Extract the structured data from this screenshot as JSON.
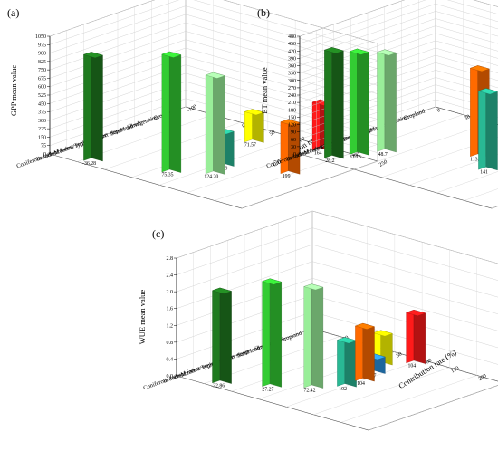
{
  "chart_data": [
    {
      "type": "bar",
      "panel_label": "(a)",
      "ylabel": "GPP mean value",
      "xlabel": "Contribution rate (%)",
      "y_ticks": [
        "0",
        "75",
        "150",
        "225",
        "300",
        "375",
        "450",
        "525",
        "600",
        "675",
        "750",
        "825",
        "900",
        "975",
        "1050"
      ],
      "x_ticks": [
        "-100",
        "-50",
        "0",
        "50",
        "100",
        "150",
        "200",
        "250"
      ],
      "categories": [
        "Coniferous forest",
        "Broadleaf forest",
        "Meadow steppe",
        "Typical steppe",
        "Desert steppe",
        "Shrub",
        "Sand land vegetation",
        "Cropland"
      ],
      "values": [
        945,
        1050,
        880,
        310,
        460,
        52,
        270,
        430
      ],
      "contribution_rate": [
        -36.28,
        75.35,
        124.2,
        109.89,
        199.0,
        31.51,
        71.57,
        164.0
      ],
      "bar_labels": [
        "-36.28",
        "75.35",
        "124.20",
        "109.89",
        "199",
        "31.51",
        "71.57",
        "164"
      ],
      "colors": [
        "#1f7a1f",
        "#33cc33",
        "#99ee99",
        "#29b894",
        "#ff6a00",
        "#2a92e0",
        "#ffff00",
        "#ff1a1a"
      ],
      "ylim": [
        0,
        1050
      ],
      "xlim": [
        -100,
        250
      ],
      "grid": true
    },
    {
      "type": "bar",
      "panel_label": "(b)",
      "ylabel": "ET mean value",
      "xlabel": "Contribution rate (%)",
      "y_ticks": [
        "0",
        "30",
        "60",
        "90",
        "120",
        "150",
        "180",
        "210",
        "240",
        "270",
        "300",
        "330",
        "360",
        "390",
        "420",
        "450",
        "480"
      ],
      "x_ticks": [
        "0",
        "30",
        "60",
        "90",
        "120",
        "150",
        "180",
        "210"
      ],
      "categories": [
        "Coniferous forest",
        "Broadleaf forest",
        "Meadow steppe",
        "Typical steppe",
        "Desert steppe",
        "Shrub",
        "Sand land vegetation",
        "Cropland"
      ],
      "values": [
        440,
        420,
        405,
        320,
        360,
        218,
        328,
        330
      ],
      "contribution_rate": [
        28.2,
        37.15,
        48.7,
        141,
        113.4,
        129,
        107.94,
        111.47
      ],
      "bar_labels": [
        "28.2",
        "37.15",
        "48.7",
        "141",
        "113.4",
        "129",
        "107.94",
        "111.47"
      ],
      "colors": [
        "#1f7a1f",
        "#33cc33",
        "#99ee99",
        "#29b894",
        "#ff6a00",
        "#2a92e0",
        "#ffff00",
        "#ff1a1a"
      ],
      "ylim": [
        0,
        480
      ],
      "xlim": [
        0,
        210
      ],
      "grid": true
    },
    {
      "type": "bar",
      "panel_label": "(c)",
      "ylabel": "WUE mean value",
      "xlabel": "Contribution rate (%)",
      "y_ticks": [
        "0.0",
        "0.4",
        "0.8",
        "1.2",
        "1.6",
        "2.0",
        "2.4",
        "2.8"
      ],
      "x_ticks": [
        "-100",
        "-50",
        "0",
        "50",
        "100",
        "150",
        "200",
        "250"
      ],
      "categories": [
        "Coniferous forest",
        "Broadleaf forest",
        "Meadow steppe",
        "Typical steppe",
        "Desert steppe",
        "Shrub",
        "Sand land vegetation",
        "Cropland"
      ],
      "values": [
        2.2,
        2.5,
        2.4,
        1.1,
        1.3,
        0.4,
        0.75,
        1.2
      ],
      "contribution_rate": [
        -32.86,
        27.27,
        72.42,
        102.0,
        104.0,
        92.7,
        74.95,
        104.0
      ],
      "bar_labels": [
        "-32.86",
        "27.27",
        "72.42",
        "102",
        "104",
        "92.7",
        "74.95",
        "104"
      ],
      "colors": [
        "#1f7a1f",
        "#33cc33",
        "#99ee99",
        "#29b894",
        "#ff6a00",
        "#2a92e0",
        "#ffff00",
        "#ff1a1a"
      ],
      "ylim": [
        0,
        2.8
      ],
      "xlim": [
        -100,
        250
      ],
      "grid": true
    }
  ]
}
